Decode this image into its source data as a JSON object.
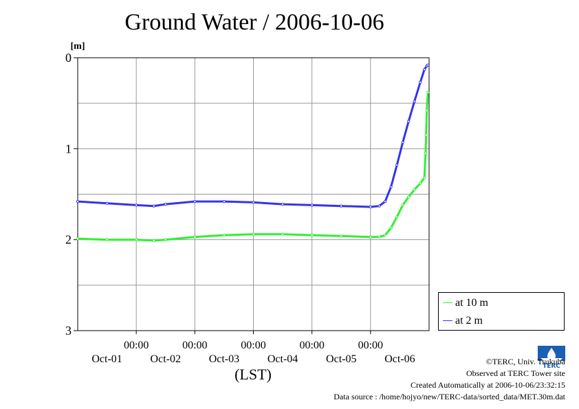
{
  "title": "Ground Water / 2006-10-06",
  "chart_data": {
    "type": "line",
    "title": "Ground Water / 2006-10-06",
    "xlabel": "(LST)",
    "ylabel": "[m]",
    "y_inverted": true,
    "ylim": [
      0,
      3
    ],
    "y_ticks": [
      "0",
      "1",
      "2",
      "3"
    ],
    "x_unit": "days (start of 2006-10-01 = 0)",
    "xlim": [
      0,
      6
    ],
    "x_tick_times": [
      "00:00",
      "00:00",
      "00:00",
      "00:00",
      "00:00"
    ],
    "x_tick_dates": [
      "Oct-01",
      "Oct-02",
      "Oct-03",
      "Oct-04",
      "Oct-05",
      "Oct-06"
    ],
    "grid": true,
    "legend_position": "bottom-right, outside plot",
    "series": [
      {
        "name": "at 10 m",
        "color": "#33ee33",
        "x": [
          0,
          0.5,
          1.0,
          1.3,
          1.5,
          2.0,
          2.5,
          3.0,
          3.5,
          4.0,
          4.5,
          5.0,
          5.15,
          5.25,
          5.35,
          5.45,
          5.55,
          5.65,
          5.75,
          5.85,
          5.92,
          5.94,
          5.95,
          5.96,
          5.98
        ],
        "y": [
          1.99,
          2.0,
          2.0,
          2.01,
          2.0,
          1.97,
          1.95,
          1.94,
          1.94,
          1.95,
          1.96,
          1.97,
          1.97,
          1.95,
          1.87,
          1.75,
          1.62,
          1.53,
          1.45,
          1.38,
          1.32,
          1.05,
          0.85,
          0.58,
          0.38
        ]
      },
      {
        "name": "at 2 m",
        "color": "#3333ee",
        "x": [
          0,
          0.5,
          1.0,
          1.3,
          1.5,
          2.0,
          2.5,
          3.0,
          3.5,
          4.0,
          4.5,
          5.0,
          5.15,
          5.25,
          5.35,
          5.45,
          5.55,
          5.65,
          5.75,
          5.85,
          5.92,
          5.96,
          5.98
        ],
        "y": [
          1.58,
          1.6,
          1.62,
          1.63,
          1.61,
          1.58,
          1.58,
          1.59,
          1.61,
          1.62,
          1.63,
          1.64,
          1.63,
          1.58,
          1.42,
          1.18,
          0.93,
          0.7,
          0.48,
          0.27,
          0.13,
          0.09,
          0.08
        ]
      }
    ]
  },
  "credits": {
    "line1": "©TERC, Univ. Tsukuba",
    "line2": "Observed at TERC Tower site",
    "line3": "Created Automatically at 2006-10-06/23:32:15",
    "line4": "Data source : /home/hojyo/new/TERC-data/sorted_data/MET.30m.dat"
  },
  "logo": {
    "label": "TERC",
    "icon": "terc-logo-icon",
    "color": "#1a5fb4"
  }
}
